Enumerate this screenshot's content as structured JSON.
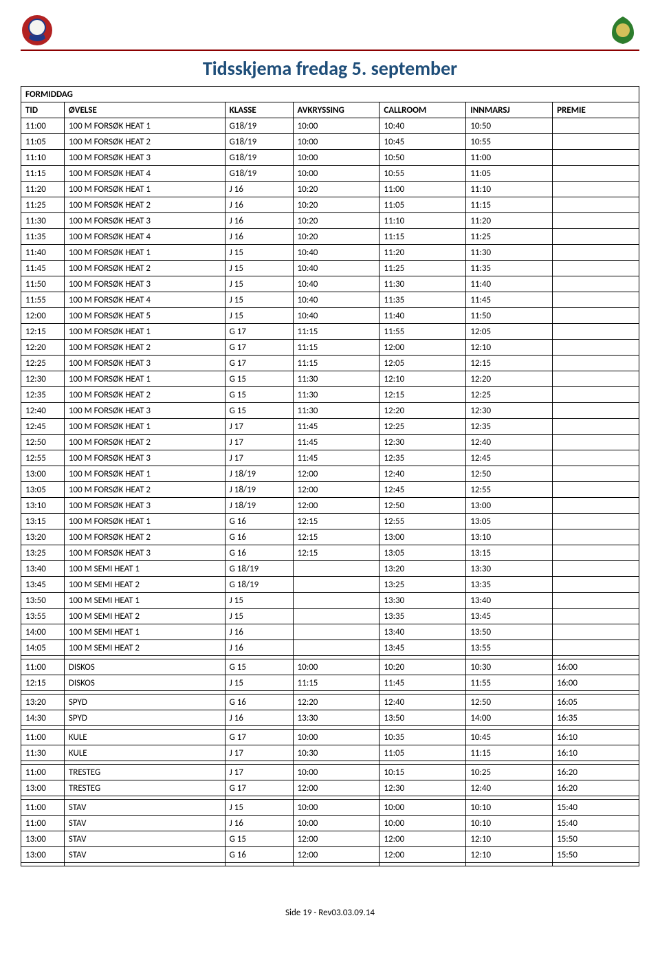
{
  "title": "Tidsskjema fredag 5. september",
  "section_label": "FORMIDDAG",
  "headers": [
    "TID",
    "ØVELSE",
    "KLASSE",
    "AVKRYSSING",
    "CALLROOM",
    "INNMARSJ",
    "PREMIE"
  ],
  "footer": "Side 19 - Rev03.03.09.14",
  "logo_left": {
    "bg": "#b22222",
    "ring": "#1e3a8a"
  },
  "logo_right": {
    "leaves": "#2d7d2d",
    "center": "#d4c05a"
  },
  "blocks": [
    {
      "rows": [
        [
          "11:00",
          "100 M FORSØK HEAT 1",
          "G18/19",
          "10:00",
          "10:40",
          "10:50",
          ""
        ],
        [
          "11:05",
          "100 M FORSØK HEAT 2",
          "G18/19",
          "10:00",
          "10:45",
          "10:55",
          ""
        ],
        [
          "11:10",
          "100 M FORSØK HEAT 3",
          "G18/19",
          "10:00",
          "10:50",
          "11:00",
          ""
        ],
        [
          "11:15",
          "100 M FORSØK HEAT 4",
          "G18/19",
          "10:00",
          "10:55",
          "11:05",
          ""
        ],
        [
          "11:20",
          "100 M FORSØK HEAT 1",
          "J 16",
          "10:20",
          "11:00",
          "11:10",
          ""
        ],
        [
          "11:25",
          "100 M FORSØK HEAT 2",
          "J 16",
          "10:20",
          "11:05",
          "11:15",
          ""
        ],
        [
          "11:30",
          "100 M FORSØK HEAT 3",
          "J 16",
          "10:20",
          "11:10",
          "11:20",
          ""
        ],
        [
          "11:35",
          "100 M FORSØK HEAT 4",
          "J 16",
          "10:20",
          "11:15",
          "11:25",
          ""
        ],
        [
          "11:40",
          "100 M FORSØK HEAT 1",
          "J 15",
          "10:40",
          "11:20",
          "11:30",
          ""
        ],
        [
          "11:45",
          "100 M FORSØK HEAT 2",
          "J 15",
          "10:40",
          "11:25",
          "11:35",
          ""
        ],
        [
          "11:50",
          "100 M FORSØK HEAT 3",
          "J 15",
          "10:40",
          "11:30",
          "11:40",
          ""
        ],
        [
          "11:55",
          "100 M FORSØK HEAT 4",
          "J 15",
          "10:40",
          "11:35",
          "11:45",
          ""
        ],
        [
          "12:00",
          "100 M FORSØK HEAT 5",
          "J 15",
          "10:40",
          "11:40",
          "11:50",
          ""
        ],
        [
          "12:15",
          "100 M FORSØK HEAT 1",
          "G 17",
          "11:15",
          "11:55",
          "12:05",
          ""
        ],
        [
          "12:20",
          "100 M FORSØK HEAT 2",
          "G 17",
          "11:15",
          "12:00",
          "12:10",
          ""
        ],
        [
          "12:25",
          "100 M FORSØK HEAT 3",
          "G 17",
          "11:15",
          "12:05",
          "12:15",
          ""
        ],
        [
          "12:30",
          "100 M FORSØK HEAT 1",
          "G 15",
          "11:30",
          "12:10",
          "12:20",
          ""
        ],
        [
          "12:35",
          "100 M FORSØK HEAT 2",
          "G 15",
          "11:30",
          "12:15",
          "12:25",
          ""
        ],
        [
          "12:40",
          "100 M FORSØK HEAT 3",
          "G 15",
          "11:30",
          "12:20",
          "12:30",
          ""
        ],
        [
          "12:45",
          "100 M FORSØK HEAT 1",
          "J 17",
          "11:45",
          "12:25",
          "12:35",
          ""
        ],
        [
          "12:50",
          "100 M FORSØK HEAT 2",
          "J 17",
          "11:45",
          "12:30",
          "12:40",
          ""
        ],
        [
          "12:55",
          "100 M FORSØK HEAT 3",
          "J 17",
          "11:45",
          "12:35",
          "12:45",
          ""
        ],
        [
          "13:00",
          "100 M FORSØK HEAT 1",
          "J 18/19",
          "12:00",
          "12:40",
          "12:50",
          ""
        ],
        [
          "13:05",
          "100 M FORSØK HEAT 2",
          "J 18/19",
          "12:00",
          "12:45",
          "12:55",
          ""
        ],
        [
          "13:10",
          "100 M FORSØK HEAT 3",
          "J 18/19",
          "12:00",
          "12:50",
          "13:00",
          ""
        ],
        [
          "13:15",
          "100 M FORSØK HEAT 1",
          "G 16",
          "12:15",
          "12:55",
          "13:05",
          ""
        ],
        [
          "13:20",
          "100 M FORSØK HEAT 2",
          "G 16",
          "12:15",
          "13:00",
          "13:10",
          ""
        ],
        [
          "13:25",
          "100 M FORSØK HEAT 3",
          "G 16",
          "12:15",
          "13:05",
          "13:15",
          ""
        ],
        [
          "13:40",
          "100 M SEMI HEAT 1",
          "G 18/19",
          "",
          "13:20",
          "13:30",
          ""
        ],
        [
          "13:45",
          "100 M SEMI HEAT 2",
          "G 18/19",
          "",
          "13:25",
          "13:35",
          ""
        ],
        [
          "13:50",
          "100 M SEMI HEAT 1",
          "J 15",
          "",
          "13:30",
          "13:40",
          ""
        ],
        [
          "13:55",
          "100 M SEMI HEAT 2",
          "J 15",
          "",
          "13:35",
          "13:45",
          ""
        ],
        [
          "14:00",
          "100 M SEMI HEAT 1",
          "J 16",
          "",
          "13:40",
          "13:50",
          ""
        ],
        [
          "14:05",
          "100 M SEMI HEAT 2",
          "J 16",
          "",
          "13:45",
          "13:55",
          ""
        ]
      ]
    },
    {
      "rows": [
        [
          "11:00",
          "DISKOS",
          "G 15",
          "10:00",
          "10:20",
          "10:30",
          "16:00"
        ],
        [
          "12:15",
          "DISKOS",
          "J 15",
          "11:15",
          "11:45",
          "11:55",
          "16:00"
        ]
      ]
    },
    {
      "rows": [
        [
          "13:20",
          "SPYD",
          "G 16",
          "12:20",
          "12:40",
          "12:50",
          "16:05"
        ],
        [
          "14:30",
          "SPYD",
          "J 16",
          "13:30",
          "13:50",
          "14:00",
          "16:35"
        ]
      ]
    },
    {
      "rows": [
        [
          "11:00",
          "KULE",
          "G 17",
          "10:00",
          "10:35",
          "10:45",
          "16:10"
        ],
        [
          "11:30",
          "KULE",
          "J 17",
          "10:30",
          "11:05",
          "11:15",
          "16:10"
        ]
      ]
    },
    {
      "rows": [
        [
          "11:00",
          "TRESTEG",
          "J 17",
          "10:00",
          "10:15",
          "10:25",
          "16:20"
        ],
        [
          "13:00",
          "TRESTEG",
          "G 17",
          "12:00",
          "12:30",
          "12:40",
          "16:20"
        ]
      ]
    },
    {
      "rows": [
        [
          "11:00",
          "STAV",
          "J 15",
          "10:00",
          "10:00",
          "10:10",
          "15:40"
        ],
        [
          "11:00",
          "STAV",
          "J 16",
          "10:00",
          "10:00",
          "10:10",
          "15:40"
        ],
        [
          "13:00",
          "STAV",
          "G 15",
          "12:00",
          "12:00",
          "12:10",
          "15:50"
        ],
        [
          "13:00",
          "STAV",
          "G 16",
          "12:00",
          "12:00",
          "12:10",
          "15:50"
        ]
      ]
    }
  ]
}
